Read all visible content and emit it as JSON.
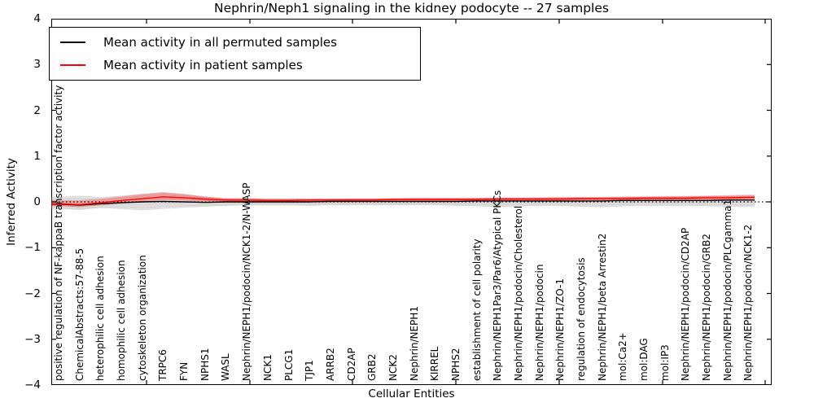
{
  "chart_data": {
    "type": "line",
    "title": "Nephrin/Neph1 signaling in the kidney podocyte -- 27 samples",
    "xlabel": "Cellular Entities",
    "ylabel": "Inferred Activity",
    "ylim": [
      -4,
      4
    ],
    "yticks": [
      4,
      3,
      2,
      1,
      0,
      -1,
      -2,
      -3,
      -4
    ],
    "grid": false,
    "legend_position": "upper left",
    "zero_line": {
      "style": "dotted",
      "color": "#000000",
      "y": 0
    },
    "categories": [
      "positive regulation of NF-kappaB transcription factor activity",
      "ChemicalAbstracts:57-88-5",
      "heterophilic cell adhesion",
      "homophilic cell adhesion",
      "cytoskeleton organization",
      "TRPC6",
      "FYN",
      "NPHS1",
      "WASL",
      "Nephrin/NEPH1/podocin/NCK1-2/N-WASP",
      "NCK1",
      "PLCG1",
      "TJP1",
      "ARRB2",
      "CD2AP",
      "GRB2",
      "NCK2",
      "Nephrin/NEPH1",
      "KIRREL",
      "NPHS2",
      "establishment of cell polarity",
      "Nephrin/NEPH1Par3/Par6/Atypical PKCs",
      "Nephrin/NEPH1/podocin/Cholesterol",
      "Nephrin/NEPH1/podocin",
      "Nephrin/NEPH1/ZO-1",
      "regulation of endocytosis",
      "Nephrin/NEPH1/beta Arrestin2",
      "mol:Ca2+",
      "mol:DAG",
      "mol:IP3",
      "Nephrin/NEPH1/podocin/CD2AP",
      "Nephrin/NEPH1/podocin/GRB2",
      "Nephrin/NEPH1/podocin/PLCgamma1",
      "Nephrin/NEPH1/podocin/NCK1-2"
    ],
    "series": [
      {
        "name": "Mean activity in all permuted samples",
        "color": "#000000",
        "values": [
          -0.05,
          -0.07,
          -0.04,
          -0.02,
          0.0,
          0.01,
          0.0,
          -0.01,
          0.0,
          0.0,
          0.0,
          0.0,
          0.0,
          0.01,
          0.01,
          0.01,
          0.01,
          0.01,
          0.01,
          0.01,
          0.02,
          0.02,
          0.02,
          0.02,
          0.02,
          0.02,
          0.02,
          0.03,
          0.03,
          0.03,
          0.03,
          0.03,
          0.04,
          0.04
        ]
      },
      {
        "name": "Mean activity in patient samples",
        "color": "#ff0000",
        "values": [
          -0.04,
          -0.06,
          -0.02,
          0.03,
          0.07,
          0.11,
          0.09,
          0.06,
          0.04,
          0.04,
          0.03,
          0.03,
          0.04,
          0.04,
          0.04,
          0.04,
          0.05,
          0.05,
          0.05,
          0.05,
          0.05,
          0.06,
          0.06,
          0.06,
          0.06,
          0.07,
          0.07,
          0.07,
          0.08,
          0.08,
          0.08,
          0.09,
          0.09,
          0.1
        ]
      }
    ],
    "bands": [
      {
        "name": "permuted-samples-envelope",
        "color": "#9a9a9a",
        "opacity": 0.3,
        "upper": [
          0.1,
          0.13,
          0.1,
          0.13,
          0.17,
          0.21,
          0.17,
          0.11,
          0.08,
          0.08,
          0.07,
          0.07,
          0.07,
          0.07,
          0.07,
          0.07,
          0.08,
          0.08,
          0.08,
          0.08,
          0.08,
          0.08,
          0.08,
          0.09,
          0.09,
          0.09,
          0.09,
          0.1,
          0.1,
          0.1,
          0.11,
          0.12,
          0.12,
          0.13
        ],
        "lower": [
          -0.15,
          -0.17,
          -0.13,
          -0.15,
          -0.18,
          -0.15,
          -0.12,
          -0.1,
          -0.08,
          -0.07,
          -0.07,
          -0.07,
          -0.08,
          -0.07,
          -0.07,
          -0.07,
          -0.07,
          -0.07,
          -0.07,
          -0.08,
          -0.09,
          -0.11,
          -0.09,
          -0.08,
          -0.08,
          -0.1,
          -0.11,
          -0.09,
          -0.08,
          -0.08,
          -0.08,
          -0.09,
          -0.1,
          -0.1
        ]
      },
      {
        "name": "patient-samples-envelope",
        "color": "#ff3333",
        "opacity": 0.28,
        "upper": [
          0.03,
          0.03,
          0.06,
          0.11,
          0.16,
          0.2,
          0.16,
          0.11,
          0.07,
          0.07,
          0.06,
          0.06,
          0.06,
          0.06,
          0.07,
          0.07,
          0.07,
          0.08,
          0.08,
          0.08,
          0.08,
          0.09,
          0.09,
          0.09,
          0.1,
          0.1,
          0.1,
          0.11,
          0.11,
          0.12,
          0.12,
          0.13,
          0.14,
          0.15
        ],
        "lower": [
          -0.09,
          -0.11,
          -0.07,
          -0.03,
          0.01,
          0.04,
          0.03,
          0.02,
          0.01,
          0.01,
          0.01,
          0.01,
          0.01,
          0.01,
          0.02,
          0.02,
          0.02,
          0.02,
          0.02,
          0.03,
          0.03,
          0.03,
          0.03,
          0.03,
          0.03,
          0.04,
          0.04,
          0.04,
          0.04,
          0.05,
          0.05,
          0.05,
          0.05,
          0.06
        ]
      }
    ]
  }
}
